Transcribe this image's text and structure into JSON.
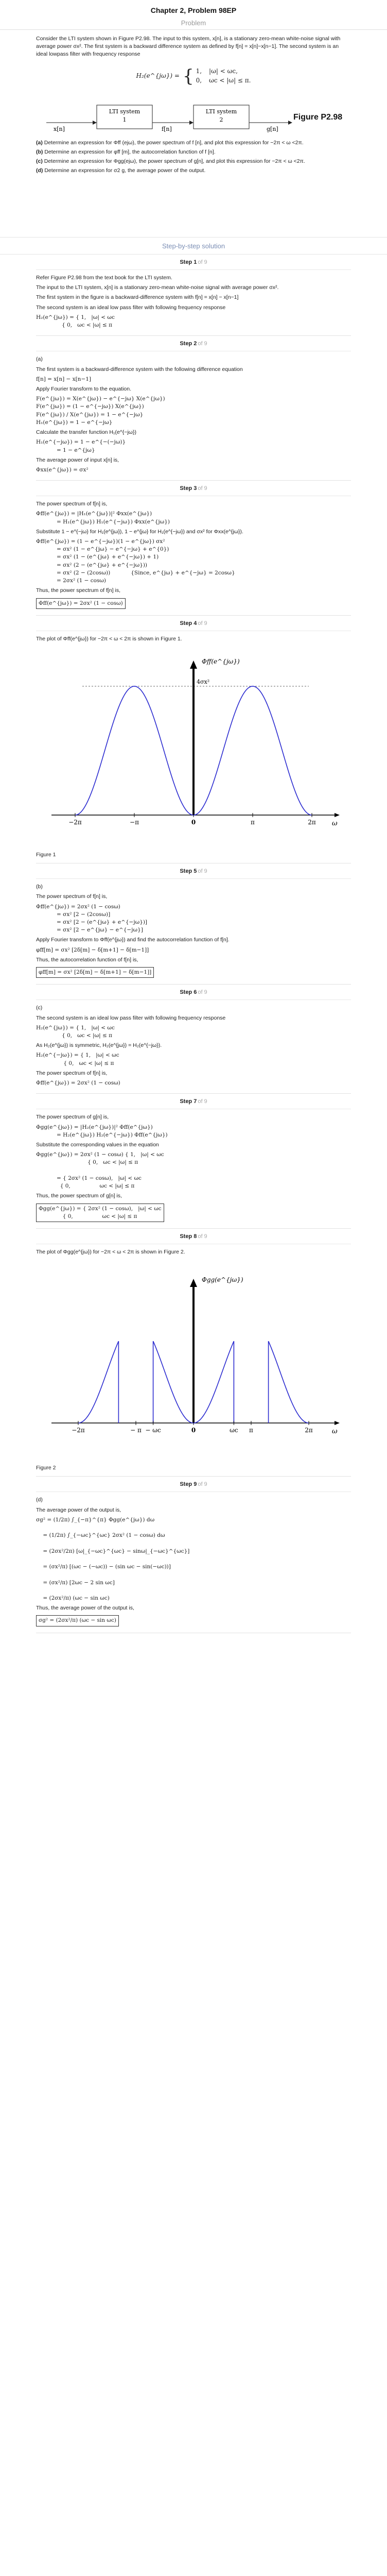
{
  "header": {
    "chapter_title": "Chapter 2, Problem 98EP",
    "problem_label": "Problem"
  },
  "problem": {
    "intro": "Consider the LTI system shown in Figure P2.98. The input to this system, x[n], is a stationary zero-mean white-noise signal with average power σx². The first system is a backward difference system as defined by f[n] = x[n]−x[n−1]. The second system is an ideal lowpass filter with frequency response",
    "h2_lhs": "H₂(e^{jω}) =",
    "h2_case1": "1,",
    "h2_case1_cond": "|ω| < ωc,",
    "h2_case2": "0,",
    "h2_case2_cond": "ωc < |ω| ≤ π.",
    "diagram": {
      "input": "x[n]",
      "block1_line1": "LTI system",
      "block1_line2": "1",
      "mid": "f[n]",
      "block2_line1": "LTI system",
      "block2_line2": "2",
      "output": "g[n]",
      "figure_label": "Figure P2.98"
    },
    "parts": [
      {
        "tag": "(a)",
        "text": "Determine an expression for Φff (ejω), the power spectrum of f [n], and plot this expression for −2π < ω <2π."
      },
      {
        "tag": "(b)",
        "text": "Determine an expression for φff [m], the autocorrelation function of f [n]."
      },
      {
        "tag": "(c)",
        "text": "Determine an expression for Φgg(ejω), the power spectrum of g[n], and plot this expression for −2π < ω <2π."
      },
      {
        "tag": "(d)",
        "text": "Determine an expression for σ2 g, the average power of the output."
      }
    ]
  },
  "sbs_label": "Step-by-step solution",
  "steps": [
    {
      "title": "Step 1",
      "of": "of 9",
      "lines": [
        {
          "type": "p",
          "text": "Refer Figure P2.98 from the text book for the LTI system."
        },
        {
          "type": "p",
          "text": "The input to the LTI system,  x[n] is a stationary zero-mean white-noise signal with average power  σx²."
        },
        {
          "type": "p",
          "text": "The first system in the figure is a backward-difference system with  f[n] = x[n] − x[n−1]"
        },
        {
          "type": "p",
          "text": "The second system is an ideal low pass filter with following frequency response"
        },
        {
          "type": "m",
          "text": "H₂(e^{jω}) = { 1,   |ω| < ωc\n               { 0,   ωc < |ω| ≤ π"
        }
      ]
    },
    {
      "title": "Step 2",
      "of": "of 9",
      "lines": [
        {
          "type": "p",
          "text": "(a)"
        },
        {
          "type": "p",
          "text": "The first system is a backward-difference system with the following difference equation"
        },
        {
          "type": "m",
          "text": "f[n] = x[n] − x[n−1]"
        },
        {
          "type": "p",
          "text": "Apply Fourier transform to the equation."
        },
        {
          "type": "m",
          "text": "F(e^{jω}) = X(e^{jω}) − e^{−jω} X(e^{jω})\nF(e^{jω}) = (1 − e^{−jω}) X(e^{jω})\nF(e^{jω}) / X(e^{jω}) = 1 − e^{−jω}\nH₁(e^{jω}) = 1 − e^{−jω}"
        },
        {
          "type": "p",
          "text": "Calculate the transfer function  H₁(e^{−jω})"
        },
        {
          "type": "m",
          "text": "H₁(e^{−jω}) = 1 − e^{−(−jω)}\n            = 1 − e^{jω}"
        },
        {
          "type": "p",
          "text": "The average power of input  x[n] is,"
        },
        {
          "type": "m",
          "text": "Φxx(e^{jω}) = σx²"
        }
      ]
    },
    {
      "title": "Step 3",
      "of": "of 9",
      "lines": [
        {
          "type": "p",
          "text": "The power spectrum of  f[n] is,"
        },
        {
          "type": "m",
          "text": "Φff(e^{jω}) = |H₁(e^{jω})|² Φxx(e^{jω})\n            = H₁(e^{jω}) H₁(e^{−jω}) Φxx(e^{jω})"
        },
        {
          "type": "p",
          "text": "Substitute  1 − e^{−jω} for H₁(e^{jω}),  1 − e^{jω} for H₁(e^{−jω}) and  σx² for Φxx(e^{jω})."
        },
        {
          "type": "m",
          "text": "Φff(e^{jω}) = (1 − e^{−jω})(1 − e^{jω}) σx²\n            = σx² (1 − e^{jω} − e^{−jω} + e^{0})\n            = σx² (1 − (e^{jω} + e^{−jω}) + 1)\n            = σx² (2 − (e^{jω} + e^{−jω}))\n            = σx² (2 − (2cosω))            {Since, e^{jω} + e^{−jω} = 2cosω}\n            = 2σx² (1 − cosω)"
        },
        {
          "type": "p",
          "text": "Thus, the power spectrum of  f[n] is,"
        },
        {
          "type": "b",
          "text": "Φff(e^{jω}) = 2σx² (1 − cosω)"
        }
      ]
    },
    {
      "title": "Step 4",
      "of": "of 9",
      "plot_intro": "The plot of  Φff(e^{jω}) for  −2π < ω < 2π is shown in Figure 1.",
      "caption": "Figure 1"
    },
    {
      "title": "Step 5",
      "of": "of 9",
      "lines": [
        {
          "type": "p",
          "text": "(b)"
        },
        {
          "type": "p",
          "text": "The power spectrum of  f[n] is,"
        },
        {
          "type": "m",
          "text": "Φff(e^{jω}) = 2σx² (1 − cosω)\n            = σx² [2 − (2cosω)]\n            = σx² [2 − (e^{jω} + e^{−jω})]\n            = σx² [2 − e^{jω} − e^{−jω}]"
        },
        {
          "type": "p",
          "text": "Apply Fourier transform to  Φff(e^{jω}) and find the autocorrelation function of  f[n]."
        },
        {
          "type": "m",
          "text": "φff[m] = σx² [2δ[m] − δ[m+1] − δ[m−1]]"
        },
        {
          "type": "p",
          "text": "Thus, the autocorrelation function of  f[n] is,"
        },
        {
          "type": "b",
          "text": "φff[m] = σx² [2δ[m] − δ[m+1] − δ[m−1]]"
        }
      ]
    },
    {
      "title": "Step 6",
      "of": "of 9",
      "lines": [
        {
          "type": "p",
          "text": "(c)"
        },
        {
          "type": "p",
          "text": "The second system is an ideal low pass filter with following frequency response"
        },
        {
          "type": "m",
          "text": "H₂(e^{jω}) = { 1,   |ω| < ωc\n               { 0,   ωc < |ω| ≤ π"
        },
        {
          "type": "p",
          "text": "As  H₂(e^{jω}) is symmetric,   H₂(e^{jω}) = H₂(e^{−jω})."
        },
        {
          "type": "m",
          "text": "H₂(e^{−jω}) = { 1,   |ω| < ωc\n                { 0,   ωc < |ω| ≤ π"
        },
        {
          "type": "p",
          "text": "The power spectrum of  f[n] is,"
        },
        {
          "type": "m",
          "text": "Φff(e^{jω}) = 2σx² (1 − cosω)"
        }
      ]
    },
    {
      "title": "Step 7",
      "of": "of 9",
      "lines": [
        {
          "type": "p",
          "text": "The power spectrum of  g[n] is,"
        },
        {
          "type": "m",
          "text": "Φgg(e^{jω}) = |H₂(e^{jω})|² Φff(e^{jω})\n            = H₂(e^{jω}) H₂(e^{−jω}) Φff(e^{jω})"
        },
        {
          "type": "p",
          "text": "Substitute the corresponding values in the equation"
        },
        {
          "type": "m",
          "text": "Φgg(e^{jω}) = 2σx² (1 − cosω) { 1,   |ω| < ωc\n                              { 0,   ωc < |ω| ≤ π\n\n            = { 2σx² (1 − cosω),   |ω| < ωc\n              { 0,                 ωc < |ω| ≤ π"
        },
        {
          "type": "p",
          "text": "Thus, the power spectrum of  g[n] is,"
        },
        {
          "type": "b",
          "text": "Φgg(e^{jω}) = { 2σx² (1 − cosω),   |ω| < ωc\n              { 0,                 ωc < |ω| ≤ π"
        }
      ]
    },
    {
      "title": "Step 8",
      "of": "of 9",
      "plot_intro": "The plot of  Φgg(e^{jω}) for  −2π < ω < 2π is shown in Figure 2.",
      "caption": "Figure 2"
    },
    {
      "title": "Step 9",
      "of": "of 9",
      "lines": [
        {
          "type": "p",
          "text": "(d)"
        },
        {
          "type": "p",
          "text": "The average power of the output is,"
        },
        {
          "type": "m",
          "text": "σg² = (1/2π) ∫_{−π}^{π} Φgg(e^{jω}) dω\n\n    = (1/2π) ∫_{−ωc}^{ωc} 2σx² (1 − cosω) dω\n\n    = (2σx²/2π) [ω|_{−ωc}^{ωc} − sinω|_{−ωc}^{ωc}]\n\n    = (σx²/π) [(ωc − (−ωc)) − (sin ωc − sin(−ωc))]\n\n    = (σx²/π) [2ωc − 2 sin ωc]\n\n    = (2σx²/π) (ωc − sin ωc)"
        },
        {
          "type": "p",
          "text": "Thus, the average power of the output is,"
        },
        {
          "type": "b",
          "text": "σg² = (2σx²/π) (ωc − sin ωc)"
        }
      ]
    }
  ],
  "plot1": {
    "ylabel": "Φff(e^{jω})",
    "peak_label": "4σx²",
    "xlabel": "ω",
    "ticks": [
      "−2π",
      "−π",
      "0",
      "π",
      "2π"
    ]
  },
  "plot2": {
    "ylabel": "Φgg(e^{jω})",
    "xlabel": "ω",
    "ticks": [
      "−2π",
      "− π",
      "− ωc",
      "0",
      "ωc",
      "π",
      "2π"
    ]
  },
  "colors": {
    "curve": "#2b2bd0",
    "divider": "#e2e2e2"
  }
}
